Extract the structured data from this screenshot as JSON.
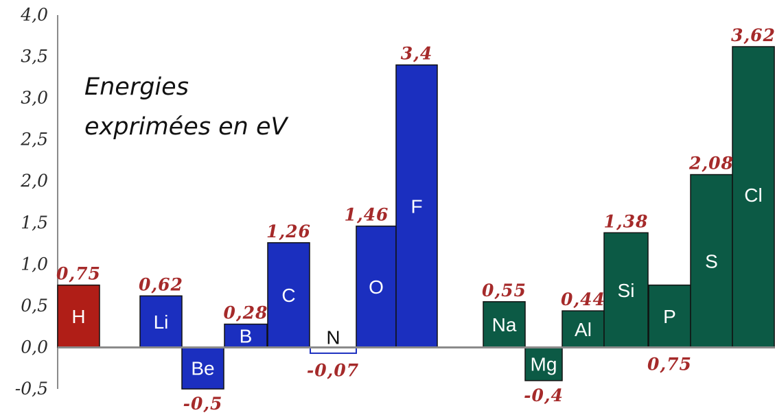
{
  "chart_data": {
    "type": "bar",
    "title": "",
    "xlabel": "",
    "ylabel": "",
    "annotation": [
      "Energies",
      "exprimées en eV"
    ],
    "ylim": [
      -0.5,
      4.0
    ],
    "y_ticks": [
      "-0,5",
      "0,0",
      "0,5",
      "1,0",
      "1,5",
      "2,0",
      "2,5",
      "3,0",
      "3,5",
      "4,0"
    ],
    "categories": [
      "H",
      "Li",
      "Be",
      "B",
      "C",
      "N",
      "O",
      "F",
      "Na",
      "Mg",
      "Al",
      "Si",
      "P",
      "S",
      "Cl"
    ],
    "values": [
      0.75,
      0.62,
      -0.5,
      0.28,
      1.26,
      -0.07,
      1.46,
      3.4,
      0.55,
      -0.4,
      0.44,
      1.38,
      0.75,
      2.08,
      3.62
    ],
    "value_labels": [
      "0,75",
      "0,62",
      "-0,5",
      "0,28",
      "1,26",
      "-0,07",
      "1,46",
      "3,4",
      "0,55",
      "-0,4",
      "0,44",
      "1,38",
      "0,75",
      "2,08",
      "3,62"
    ],
    "groups": [
      "H",
      "period-2",
      "period-2",
      "period-2",
      "period-2",
      "period-2",
      "period-2",
      "period-2",
      "period-3",
      "period-3",
      "period-3",
      "period-3",
      "period-3",
      "period-3",
      "period-3"
    ],
    "colors": {
      "H": "#b01e17",
      "period-2": "#1b2fbf",
      "period-3": "#0c5a45",
      "value_label": "#a52a2a",
      "axis": "#8a8a8a"
    },
    "grid": false,
    "legend": "none"
  }
}
